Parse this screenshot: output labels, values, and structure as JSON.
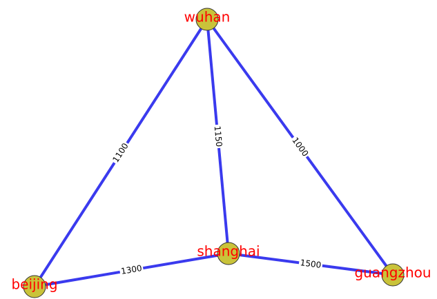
{
  "nodes": [
    {
      "label": "wuhan"
    },
    {
      "label": "beijing"
    },
    {
      "label": "shanghai"
    },
    {
      "label": "guangzhou"
    }
  ],
  "edges": [
    {
      "source": "wuhan",
      "target": "beijing",
      "label": 1100
    },
    {
      "source": "wuhan",
      "target": "shanghai",
      "label": 1150
    },
    {
      "source": "wuhan",
      "target": "guangzhou",
      "label": 1000
    },
    {
      "source": "beijing",
      "target": "shanghai",
      "label": 1300
    },
    {
      "source": "shanghai",
      "target": "guangzhou",
      "label": 1500
    }
  ]
}
